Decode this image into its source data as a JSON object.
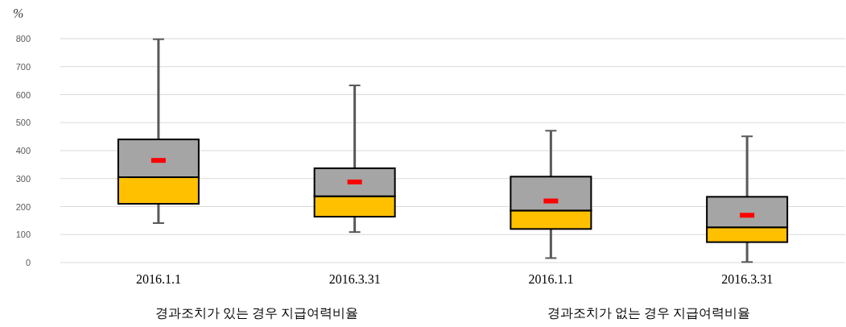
{
  "chart_data": {
    "type": "box",
    "ylabel": "%",
    "categories": [
      "2016.1.1",
      "2016.3.31",
      "2016.1.1",
      "2016.3.31"
    ],
    "boxes": [
      {
        "low": 141,
        "q1": 210,
        "median": 305,
        "q3": 440,
        "high": 798,
        "mean": 365
      },
      {
        "low": 109,
        "q1": 164,
        "median": 237,
        "q3": 337,
        "high": 633,
        "mean": 288
      },
      {
        "low": 16,
        "q1": 120,
        "median": 186,
        "q3": 307,
        "high": 471,
        "mean": 220
      },
      {
        "low": 2,
        "q1": 73,
        "median": 126,
        "q3": 235,
        "high": 451,
        "mean": 169
      }
    ],
    "ylim": [
      0,
      800
    ],
    "yticks": [
      0,
      100,
      200,
      300,
      400,
      500,
      600,
      700,
      800
    ],
    "grid": "y",
    "annotations": [
      "경과조치가 있는 경우 지급여력비율",
      "경과조치가 없는 경우 지급여력비율"
    ]
  }
}
